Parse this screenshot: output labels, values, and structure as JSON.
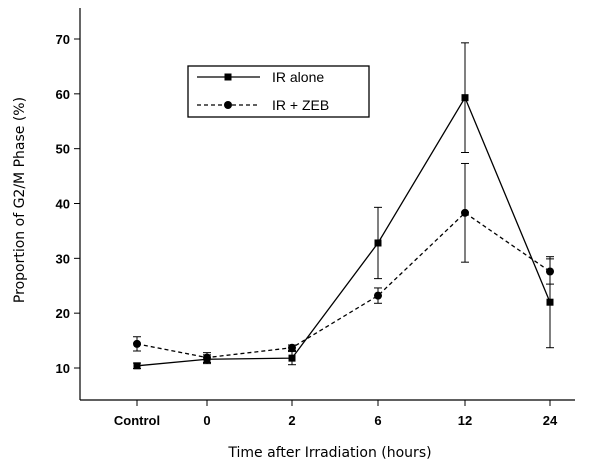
{
  "chart_data": {
    "type": "line",
    "categories": [
      "Control",
      "0",
      "2",
      "6",
      "12",
      "24"
    ],
    "xlabel": "Time after Irradiation (hours)",
    "ylabel": "Proportion of G2/M Phase (%)",
    "ylim": [
      7,
      75
    ],
    "yticks": [
      10,
      20,
      30,
      40,
      50,
      60,
      70
    ],
    "grid": false,
    "legend_position": "top-left",
    "series": [
      {
        "name": "IR alone",
        "values": [
          10.4,
          11.6,
          11.8,
          32.8,
          59.3,
          22.0
        ],
        "errors": [
          0.5,
          0.8,
          1.2,
          6.5,
          10.0,
          8.3
        ],
        "marker": "square",
        "line_style": "solid",
        "color": "#000000"
      },
      {
        "name": "IR + ZEB",
        "values": [
          14.4,
          11.9,
          13.7,
          23.2,
          38.3,
          27.6
        ],
        "errors": [
          1.3,
          0.9,
          0.5,
          1.4,
          9.0,
          2.3
        ],
        "marker": "circle",
        "line_style": "dashed",
        "color": "#000000"
      }
    ]
  }
}
